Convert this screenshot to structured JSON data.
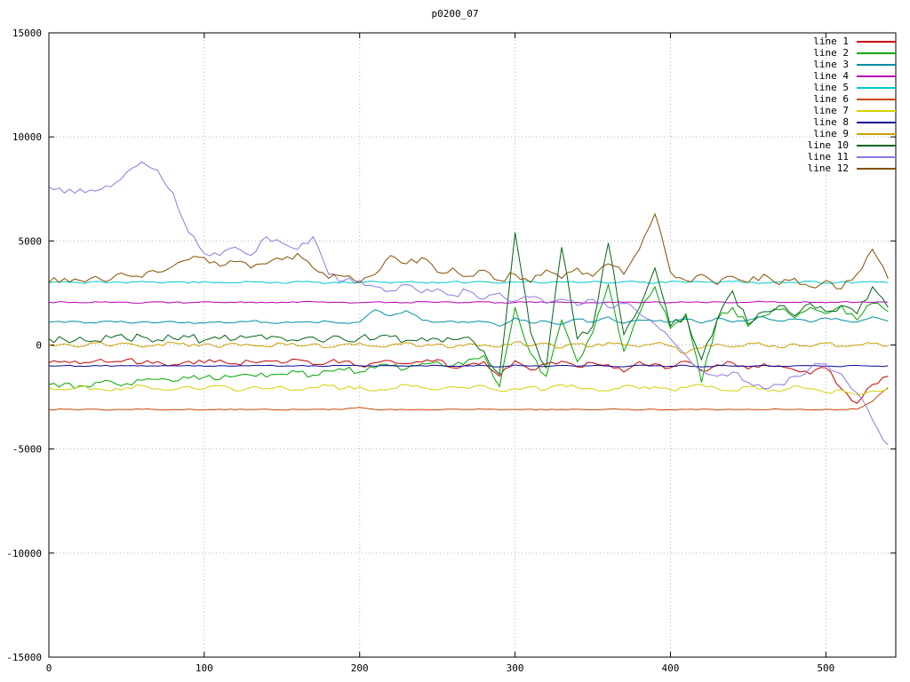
{
  "chart_data": {
    "type": "line",
    "title": "p0200_07",
    "xlabel": "",
    "ylabel": "",
    "xlim": [
      0,
      545
    ],
    "ylim": [
      -15000,
      15000
    ],
    "xticks": [
      0,
      100,
      200,
      300,
      400,
      500
    ],
    "yticks": [
      -15000,
      -10000,
      -5000,
      0,
      5000,
      10000,
      15000
    ],
    "grid": true,
    "legend_position": "top-right",
    "x": [
      0,
      10,
      20,
      30,
      40,
      50,
      60,
      70,
      80,
      90,
      100,
      110,
      120,
      130,
      140,
      150,
      160,
      170,
      180,
      190,
      200,
      210,
      220,
      230,
      240,
      250,
      260,
      270,
      280,
      290,
      300,
      310,
      320,
      330,
      340,
      350,
      360,
      370,
      380,
      390,
      400,
      410,
      420,
      430,
      440,
      450,
      460,
      470,
      480,
      490,
      500,
      510,
      520,
      530,
      540
    ],
    "series": [
      {
        "name": "line 1",
        "color": "#c80000",
        "noise": 120,
        "values": [
          -850,
          -780,
          -900,
          -760,
          -820,
          -700,
          -880,
          -800,
          -950,
          -780,
          -850,
          -720,
          -900,
          -800,
          -760,
          -880,
          -700,
          -940,
          -820,
          -780,
          -1000,
          -850,
          -760,
          -900,
          -820,
          -700,
          -1100,
          -950,
          -800,
          -1500,
          -760,
          -1200,
          -900,
          -780,
          -1050,
          -850,
          -950,
          -1300,
          -800,
          -900,
          -1100,
          -780,
          -1250,
          -950,
          -850,
          -1150,
          -900,
          -1000,
          -1200,
          -1400,
          -1100,
          -2100,
          -2800,
          -1900,
          -1500
        ]
      },
      {
        "name": "line 2",
        "color": "#00a800",
        "noise": 180,
        "values": [
          -1900,
          -1850,
          -1950,
          -1800,
          -1750,
          -1850,
          -1700,
          -1650,
          -1750,
          -1600,
          -1550,
          -1650,
          -1500,
          -1450,
          -1550,
          -1400,
          -1300,
          -1450,
          -1250,
          -1200,
          -1300,
          -1100,
          -1000,
          -1150,
          -900,
          -800,
          -1000,
          -700,
          -500,
          -2000,
          1800,
          -400,
          -1500,
          1200,
          -800,
          600,
          2900,
          -300,
          1500,
          2800,
          800,
          1500,
          -1800,
          1200,
          1800,
          900,
          1400,
          1700,
          1300,
          1800,
          1500,
          1900,
          1200,
          2000,
          1600
        ]
      },
      {
        "name": "line 3",
        "color": "#0090a0",
        "noise": 60,
        "values": [
          1100,
          1080,
          1120,
          1060,
          1140,
          1090,
          1110,
          1070,
          1130,
          1100,
          1060,
          1120,
          1080,
          1140,
          1100,
          1070,
          1110,
          1090,
          1130,
          1060,
          1100,
          1700,
          1400,
          1650,
          1200,
          1100,
          1150,
          1080,
          1120,
          900,
          1300,
          1050,
          1150,
          1000,
          1250,
          1100,
          1350,
          1050,
          1200,
          1150,
          1100,
          1250,
          1050,
          1300,
          1100,
          1200,
          1350,
          1150,
          1250,
          1100,
          1300,
          1200,
          1100,
          1350,
          1150
        ]
      },
      {
        "name": "line 4",
        "color": "#b400b4",
        "noise": 35,
        "values": [
          2050,
          2070,
          2030,
          2080,
          2040,
          2060,
          2020,
          2070,
          2050,
          2030,
          2080,
          2050,
          2040,
          2070,
          2030,
          2060,
          2050,
          2080,
          2040,
          2060,
          2030,
          2070,
          2050,
          2040,
          2080,
          2050,
          2060,
          2030,
          2070,
          2040,
          2050,
          2080,
          2030,
          2060,
          2050,
          2040,
          2070,
          2050,
          2030,
          2080,
          2040,
          2060,
          2050,
          2070,
          2030,
          2050,
          2080,
          2040,
          2060,
          2050,
          2030,
          2070,
          2050,
          2040,
          2060
        ]
      },
      {
        "name": "line 5",
        "color": "#00c8c8",
        "noise": 45,
        "values": [
          3000,
          3040,
          2980,
          3050,
          3010,
          2970,
          3060,
          3000,
          3030,
          2980,
          3050,
          3010,
          2990,
          3040,
          3000,
          2970,
          3060,
          3020,
          2980,
          3040,
          3000,
          3050,
          2970,
          3030,
          3010,
          2980,
          3050,
          3000,
          3040,
          2970,
          3020,
          3060,
          2980,
          3030,
          3000,
          3050,
          2970,
          3040,
          3010,
          2980,
          3060,
          3000,
          3030,
          2970,
          3050,
          3010,
          2980,
          3040,
          3000,
          3060,
          2970,
          3030,
          3010,
          3050,
          2990
        ]
      },
      {
        "name": "line 6",
        "color": "#c84600",
        "noise": 25,
        "values": [
          -3100,
          -3090,
          -3110,
          -3080,
          -3120,
          -3100,
          -3090,
          -3110,
          -3100,
          -3080,
          -3120,
          -3090,
          -3110,
          -3100,
          -3080,
          -3120,
          -3100,
          -3090,
          -3110,
          -3080,
          -3000,
          -3100,
          -3090,
          -3110,
          -3100,
          -3120,
          -3080,
          -3100,
          -3090,
          -3110,
          -3100,
          -3080,
          -3120,
          -3100,
          -3090,
          -3110,
          -3080,
          -3100,
          -3120,
          -3090,
          -3110,
          -3100,
          -3080,
          -3120,
          -3100,
          -3090,
          -3110,
          -3080,
          -3100,
          -3120,
          -3090,
          -3100,
          -3080,
          -2700,
          -2050
        ]
      },
      {
        "name": "line 7",
        "color": "#d2d200",
        "noise": 90,
        "values": [
          -2050,
          -2150,
          -2000,
          -2100,
          -2200,
          -2050,
          -1950,
          -2100,
          -2150,
          -2000,
          -2100,
          -1950,
          -2200,
          -2050,
          -2100,
          -2000,
          -2150,
          -2050,
          -1950,
          -2100,
          -2000,
          -2200,
          -2100,
          -1900,
          -2050,
          -2150,
          -2000,
          -2100,
          -1950,
          -2200,
          -2100,
          -2000,
          -2150,
          -1900,
          -2050,
          -2100,
          -2200,
          -1950,
          -2100,
          -2000,
          -2150,
          -2050,
          -1900,
          -2100,
          -2200,
          -2000,
          -2100,
          -2250,
          -1950,
          -2100,
          -2300,
          -2150,
          -2400,
          -2200,
          -2100
        ]
      },
      {
        "name": "line 8",
        "color": "#0a0a96",
        "noise": 30,
        "values": [
          -1000,
          -990,
          -1010,
          -980,
          -1020,
          -1000,
          -990,
          -1010,
          -1000,
          -980,
          -1020,
          -990,
          -1010,
          -1000,
          -980,
          -1020,
          -1000,
          -990,
          -1010,
          -980,
          -1000,
          -1020,
          -990,
          -1010,
          -1000,
          -980,
          -1020,
          -1000,
          -990,
          -1050,
          -960,
          -1010,
          -1030,
          -980,
          -1020,
          -990,
          -1010,
          -1050,
          -970,
          -1000,
          -1020,
          -980,
          -1060,
          -990,
          -1010,
          -1030,
          -980,
          -1020,
          -1000,
          -990,
          -1010,
          -1040,
          -980,
          -1020,
          -1000
        ]
      },
      {
        "name": "line 9",
        "color": "#c8a000",
        "noise": 90,
        "values": [
          0,
          50,
          -80,
          100,
          -50,
          80,
          -100,
          30,
          120,
          -60,
          50,
          -120,
          80,
          0,
          -80,
          100,
          -40,
          60,
          -110,
          30,
          90,
          -60,
          0,
          110,
          -80,
          50,
          -130,
          70,
          0,
          -100,
          150,
          -50,
          80,
          -150,
          60,
          -80,
          120,
          0,
          -100,
          80,
          -60,
          -400,
          -150,
          50,
          -100,
          80,
          0,
          -120,
          60,
          -80,
          100,
          -50,
          0,
          80,
          -60
        ]
      },
      {
        "name": "line 10",
        "color": "#006414",
        "noise": 200,
        "values": [
          300,
          250,
          380,
          200,
          350,
          280,
          400,
          250,
          320,
          380,
          220,
          300,
          260,
          400,
          280,
          350,
          200,
          380,
          300,
          250,
          340,
          280,
          400,
          220,
          350,
          300,
          260,
          380,
          -300,
          -1400,
          5400,
          600,
          -1100,
          4700,
          300,
          900,
          4900,
          500,
          1800,
          3700,
          900,
          1400,
          -700,
          1200,
          2600,
          1000,
          1600,
          1900,
          1400,
          2000,
          1600,
          1900,
          1500,
          2800,
          1800
        ]
      },
      {
        "name": "line 11",
        "color": "#8c78e6",
        "noise": 160,
        "values": [
          7600,
          7300,
          7500,
          7400,
          7600,
          8300,
          8800,
          8400,
          7300,
          5400,
          4400,
          4300,
          4700,
          4300,
          5200,
          4900,
          4600,
          5200,
          3400,
          3100,
          3100,
          2800,
          2600,
          2900,
          2500,
          2700,
          2400,
          2600,
          2200,
          2500,
          2100,
          2300,
          2000,
          2200,
          1900,
          2200,
          1800,
          2000,
          1500,
          1000,
          300,
          -500,
          -1200,
          -1500,
          -1300,
          -1800,
          -2100,
          -1900,
          -1500,
          -1100,
          -900,
          -1400,
          -2300,
          -3600,
          -4800
        ]
      },
      {
        "name": "line 12",
        "color": "#825000",
        "noise": 180,
        "values": [
          3000,
          3200,
          3100,
          3300,
          3150,
          3350,
          3250,
          3500,
          3800,
          4100,
          4200,
          3800,
          4000,
          3700,
          3900,
          4100,
          4400,
          3700,
          3200,
          3300,
          3000,
          3400,
          4300,
          3900,
          4200,
          3500,
          3700,
          3300,
          3600,
          3100,
          3400,
          3000,
          3600,
          3200,
          3700,
          3300,
          3900,
          3400,
          4600,
          6300,
          3500,
          3100,
          3400,
          2900,
          3300,
          3000,
          3400,
          2900,
          3200,
          2800,
          3100,
          2700,
          3400,
          4600,
          3200
        ]
      }
    ]
  }
}
